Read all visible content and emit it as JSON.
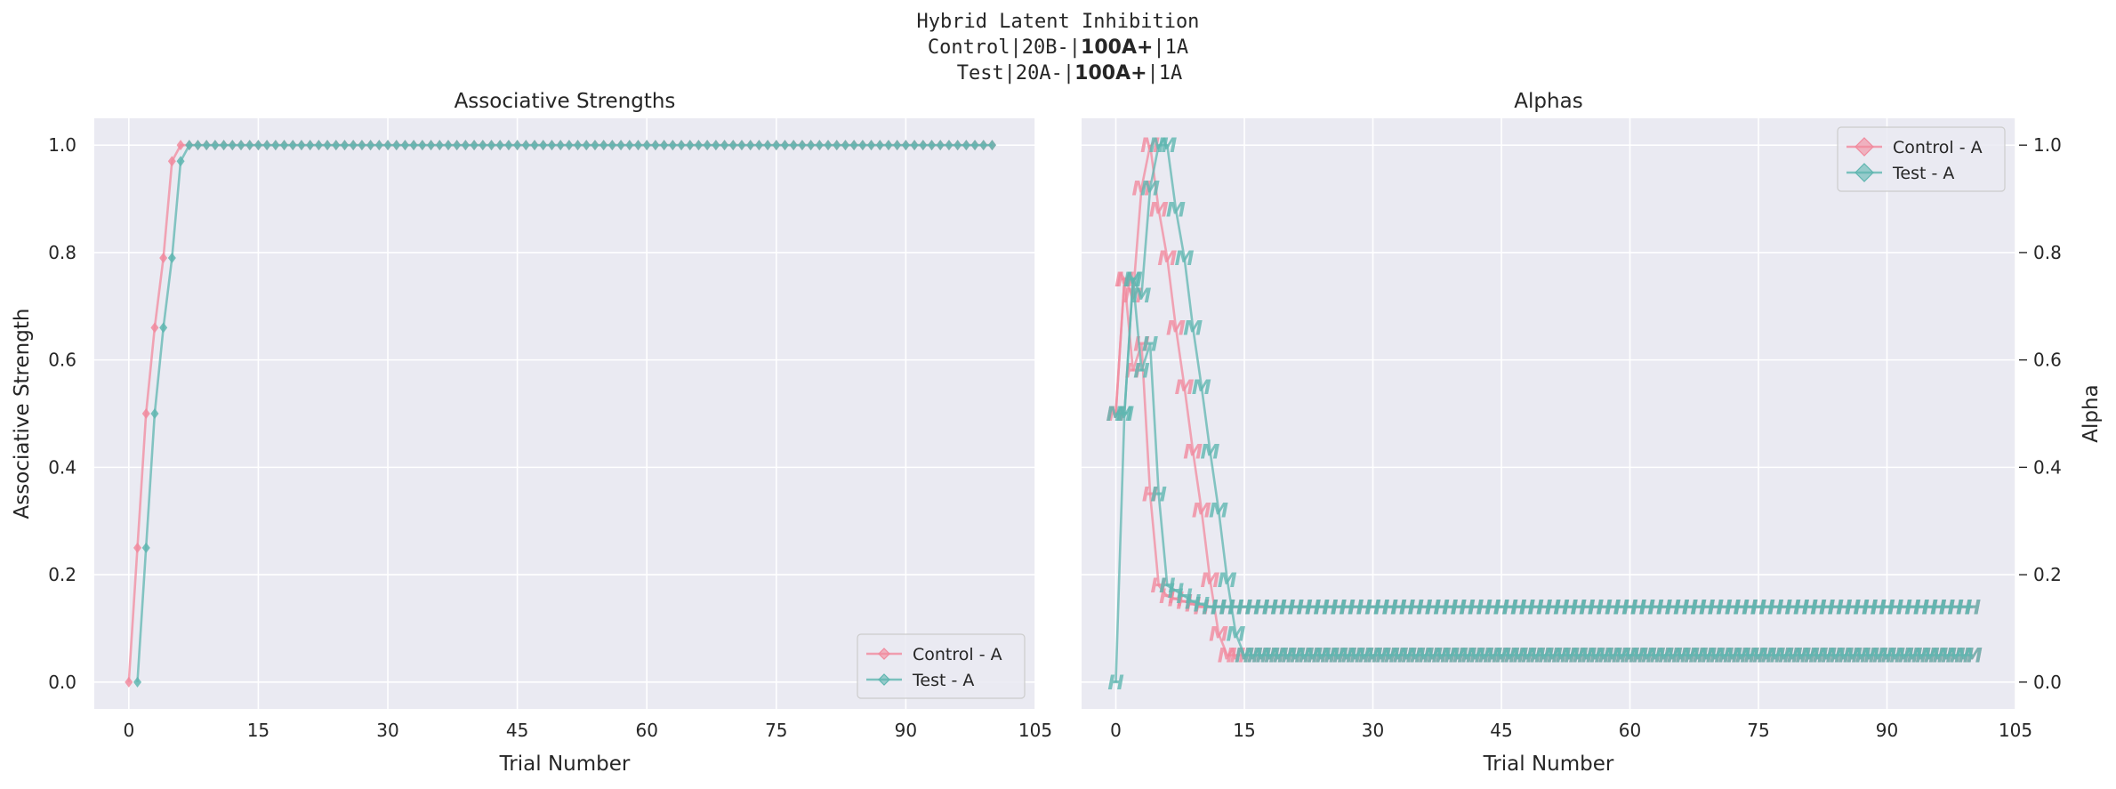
{
  "figure_title": {
    "line1": "Hybrid Latent Inhibition",
    "line2_prefix": "Control|20B-|",
    "line2_bold": "100A+",
    "line2_suffix": "|1A",
    "line3_prefix": "Test|20A-|",
    "line3_bold": "100A+",
    "line3_suffix": "|1A"
  },
  "colors": {
    "control": "#f18a9d",
    "test": "#5fb6b0",
    "panel_bg": "#eaeaf2",
    "grid": "#ffffff"
  },
  "chart_data": [
    {
      "type": "line",
      "title": "Associative Strengths",
      "xlabel": "Trial Number",
      "ylabel": "Associative Strength",
      "xlim": [
        -4,
        105
      ],
      "ylim": [
        -0.05,
        1.05
      ],
      "xticks": [
        0,
        15,
        30,
        45,
        60,
        75,
        90,
        105
      ],
      "yticks": [
        0.0,
        0.2,
        0.4,
        0.6,
        0.8,
        1.0
      ],
      "grid": true,
      "legend_position": "lower-right",
      "marker": "diamond",
      "series": [
        {
          "name": "Control - A",
          "x_start": 0,
          "x_end": 100,
          "head": [
            0.0,
            0.25,
            0.5,
            0.66,
            0.79,
            0.97,
            1.0
          ],
          "tail_value": 1.0
        },
        {
          "name": "Test - A",
          "x_start": 1,
          "x_end": 100,
          "head": [
            0.0,
            0.25,
            0.5,
            0.66,
            0.79,
            0.97,
            1.0
          ],
          "tail_value": 1.0
        }
      ]
    },
    {
      "type": "line",
      "title": "Alphas",
      "xlabel": "Trial Number",
      "ylabel": "Alpha",
      "xlim": [
        -4,
        105
      ],
      "ylim": [
        -0.05,
        1.05
      ],
      "xticks": [
        0,
        15,
        30,
        45,
        60,
        75,
        90,
        105
      ],
      "yticks": [
        0.0,
        0.2,
        0.4,
        0.6,
        0.8,
        1.0
      ],
      "grid": true,
      "legend_position": "upper-right",
      "marker_labels": [
        "M",
        "H"
      ],
      "series": [
        {
          "name": "Control - A",
          "glyph": "M",
          "x_start": 0,
          "x_end": 100,
          "head": [
            0.5,
            0.75,
            0.72,
            0.92,
            1.0,
            0.88,
            0.79,
            0.66,
            0.55,
            0.43,
            0.32,
            0.19,
            0.09,
            0.05
          ],
          "tail_value": 0.05
        },
        {
          "name": "Control - A",
          "glyph": "H",
          "x_start": 0,
          "x_end": 100,
          "head": [
            0.5,
            0.75,
            0.58,
            0.63,
            0.35,
            0.18,
            0.16,
            0.155,
            0.15,
            0.145,
            0.14
          ],
          "tail_value": 0.14
        },
        {
          "name": "Test - A",
          "glyph": "M",
          "x_start": 0,
          "x_end": 100,
          "head": [
            0.5,
            0.5,
            0.75,
            0.72,
            0.92,
            1.0,
            1.0,
            0.88,
            0.79,
            0.66,
            0.55,
            0.43,
            0.32,
            0.19,
            0.09,
            0.05
          ],
          "tail_value": 0.05
        },
        {
          "name": "Test - A",
          "glyph": "H",
          "x_start": 0,
          "x_end": 100,
          "head": [
            0.0,
            0.5,
            0.75,
            0.58,
            0.63,
            0.35,
            0.18,
            0.17,
            0.16,
            0.15,
            0.145,
            0.14
          ],
          "tail_value": 0.14
        }
      ]
    }
  ]
}
